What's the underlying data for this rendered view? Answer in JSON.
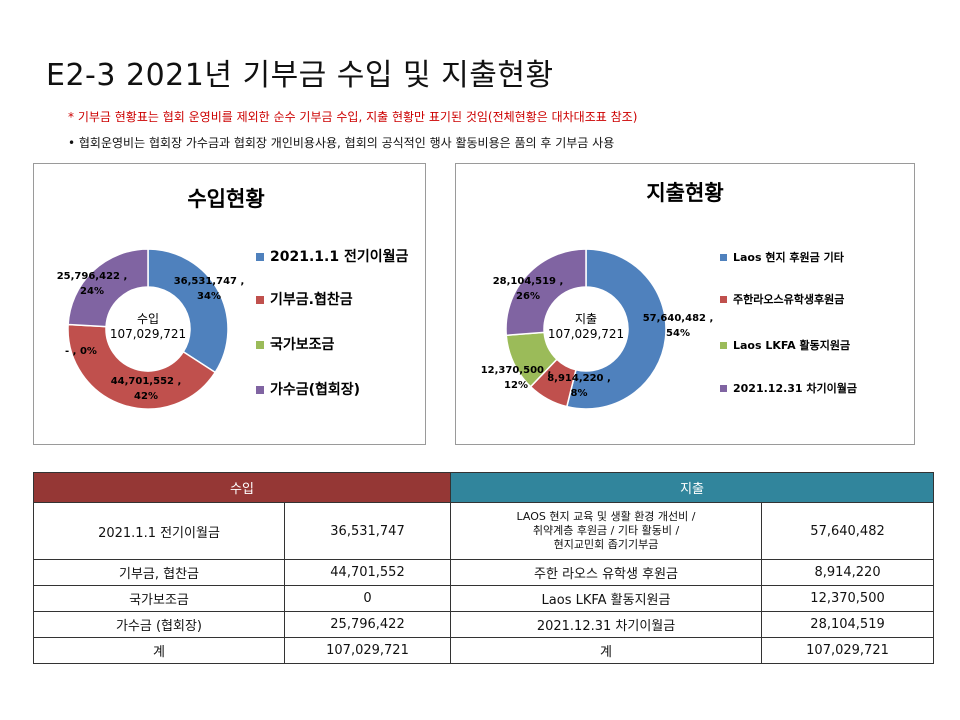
{
  "page": {
    "title": "E2-3  2021년 기부금 수입 및 지출현황",
    "note_red": "* 기부금 현황표는 협회 운영비를 제외한 순수 기부금 수입, 지출 현황만 표기된 것임(전체현황은 대차대조표 참조)",
    "note_black": "• 협회운영비는 협회장 가수금과 협회장 개인비용사용, 협회의 공식적인 행사 활동비용은 품의 후 기부금 사용"
  },
  "chart_data": [
    {
      "type": "pie",
      "title": "수입현황",
      "center_label": [
        "수입",
        "107,029,721"
      ],
      "categories": [
        "2021.1.1 전기이월금",
        "기부금.협찬금",
        "국가보조금",
        "가수금(협회장)"
      ],
      "values": [
        36531747,
        44701552,
        0,
        25796422
      ],
      "value_labels": [
        "36,531,747 ,",
        "44,701,552 ,",
        "- , 0%",
        "25,796,422 ,"
      ],
      "percent_labels": [
        "34%",
        "42%",
        "",
        "24%"
      ],
      "colors": [
        "#4f81bd",
        "#c0504d",
        "#9bbb59",
        "#8064a2"
      ],
      "legend_position": "right"
    },
    {
      "type": "pie",
      "title": "지출현황",
      "center_label": [
        "지출",
        "107,029,721"
      ],
      "categories": [
        "Laos 현지 후원금 기타",
        "주한라오스유학생후원금",
        "Laos LKFA 활동지원금",
        "2021.12.31 차기이월금"
      ],
      "values": [
        57640482,
        8914220,
        12370500,
        28104519
      ],
      "value_labels": [
        "57,640,482 ,",
        "8,914,220 ,",
        "12,370,500 ,",
        "28,104,519 ,"
      ],
      "percent_labels": [
        "54%",
        "8%",
        "12%",
        "26%"
      ],
      "colors": [
        "#4f81bd",
        "#c0504d",
        "#9bbb59",
        "#8064a2"
      ],
      "legend_position": "right"
    }
  ],
  "table": {
    "income_header": "수입",
    "expense_header": "지출",
    "rows": [
      {
        "in_label": "2021.1.1   전기이월금",
        "in_value": "36,531,747",
        "out_label": [
          "LAOS 현지 교육 및 생활 환경 개선비 /",
          "취약계층 후원금 / 기타 활동비 /",
          "현지교민회 좁기기부금"
        ],
        "out_value": "57,640,482"
      },
      {
        "in_label": "기부금, 협찬금",
        "in_value": "44,701,552",
        "out_label": "주한 라오스 유학생 후원금",
        "out_value": "8,914,220"
      },
      {
        "in_label": "국가보조금",
        "in_value": "0",
        "out_label": "Laos LKFA 활동지원금",
        "out_value": "12,370,500"
      },
      {
        "in_label": "가수금 (협회장)",
        "in_value": "25,796,422",
        "out_label": "2021.12.31  차기이월금",
        "out_value": "28,104,519"
      },
      {
        "in_label": "계",
        "in_value": "107,029,721",
        "out_label": "계",
        "out_value": "107,029,721"
      }
    ]
  }
}
